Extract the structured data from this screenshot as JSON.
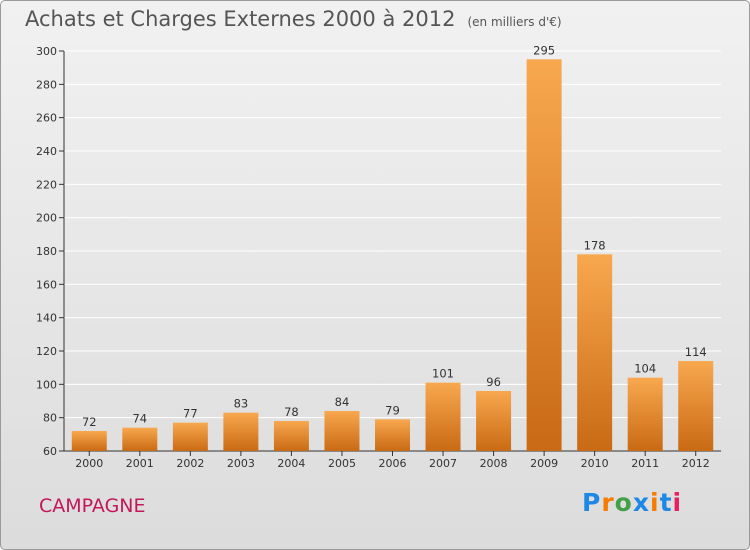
{
  "title": "Achats et Charges Externes 2000 à 2012",
  "unit": "(en milliers d'€)",
  "commune": "CAMPAGNE",
  "logo": {
    "text": "Proxiti",
    "letters": [
      "P",
      "r",
      "o",
      "x",
      "i",
      "t",
      "i"
    ],
    "colors": [
      "#1e88e5",
      "#f57c00",
      "#43a047",
      "#1e88e5",
      "#f57c00",
      "#1e88e5",
      "#e91e63"
    ]
  },
  "colors": {
    "bar_light": "#f8a84f",
    "bar_dark": "#c96a14",
    "grid": "#ffffff",
    "axis": "#333333",
    "commune": "#c2185b"
  },
  "chart_data": {
    "type": "bar",
    "title": "Achats et Charges Externes 2000 à 2012",
    "subtitle": "(en milliers d'€)",
    "categories": [
      "2000",
      "2001",
      "2002",
      "2003",
      "2004",
      "2005",
      "2006",
      "2007",
      "2008",
      "2009",
      "2010",
      "2011",
      "2012"
    ],
    "values": [
      72,
      74,
      77,
      83,
      78,
      84,
      79,
      101,
      96,
      295,
      178,
      104,
      114
    ],
    "ylim": [
      60,
      300
    ],
    "yticks": [
      60,
      80,
      100,
      120,
      140,
      160,
      180,
      200,
      220,
      240,
      260,
      280,
      300
    ],
    "grid": true,
    "xlabel": "",
    "ylabel": ""
  }
}
